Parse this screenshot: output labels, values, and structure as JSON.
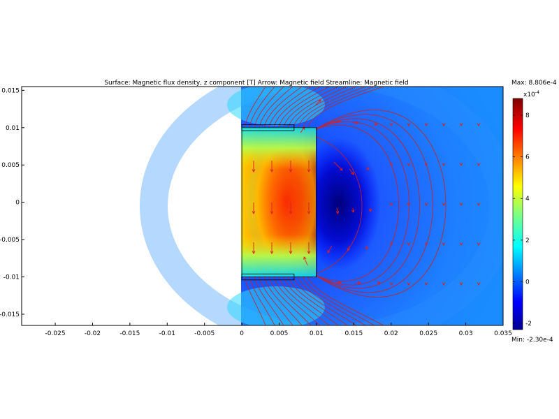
{
  "chart_data": {
    "type": "heatmap",
    "title": "Surface: Magnetic flux density, z component [T]   Arrow: Magnetic field   Streamline: Magnetic field",
    "xlabel": "",
    "ylabel": "",
    "xlim": [
      -0.0295,
      0.035
    ],
    "ylim": [
      -0.0165,
      0.0155
    ],
    "x_ticks": [
      {
        "v": -0.025,
        "label": "-0.025"
      },
      {
        "v": -0.02,
        "label": "-0.02"
      },
      {
        "v": -0.015,
        "label": "-0.015"
      },
      {
        "v": -0.01,
        "label": "-0.01"
      },
      {
        "v": -0.005,
        "label": "-0.005"
      },
      {
        "v": 0,
        "label": "0"
      },
      {
        "v": 0.005,
        "label": "0.005"
      },
      {
        "v": 0.01,
        "label": "0.01"
      },
      {
        "v": 0.015,
        "label": "0.015"
      },
      {
        "v": 0.02,
        "label": "0.02"
      },
      {
        "v": 0.025,
        "label": "0.025"
      },
      {
        "v": 0.03,
        "label": "0.03"
      },
      {
        "v": 0.035,
        "label": "0.035"
      }
    ],
    "y_ticks": [
      {
        "v": 0.015,
        "label": "0.015"
      },
      {
        "v": 0.01,
        "label": "0.01"
      },
      {
        "v": 0.005,
        "label": "0.005"
      },
      {
        "v": 0,
        "label": "0"
      },
      {
        "v": -0.005,
        "label": "-0.005"
      },
      {
        "v": -0.01,
        "label": "-0.01"
      },
      {
        "v": -0.015,
        "label": "-0.015"
      }
    ],
    "colorbar": {
      "max_label": "Max: 8.806e-4",
      "min_label": "Min: -2.30e-4",
      "exponent_label": "x10",
      "exponent_power": "-4",
      "range": [
        -2.3,
        8.806
      ],
      "ticks": [
        {
          "v": 8,
          "label": "8"
        },
        {
          "v": 6,
          "label": "6"
        },
        {
          "v": 4,
          "label": "4"
        },
        {
          "v": 2,
          "label": "2"
        },
        {
          "v": 0,
          "label": "0"
        },
        {
          "v": -2,
          "label": "-2"
        }
      ]
    },
    "geometry": {
      "magnet": {
        "x": [
          0,
          0.01
        ],
        "y": [
          -0.01,
          0.01
        ]
      },
      "rim_top": {
        "x": [
          0,
          0.007
        ],
        "y": [
          0.0096,
          0.0104
        ]
      },
      "rim_bottom": {
        "x": [
          0,
          0.007
        ],
        "y": [
          -0.0104,
          -0.0096
        ]
      }
    },
    "colors": {
      "arrow": "#e02020",
      "streamline": "#cc2020",
      "outline": "#000000"
    }
  }
}
